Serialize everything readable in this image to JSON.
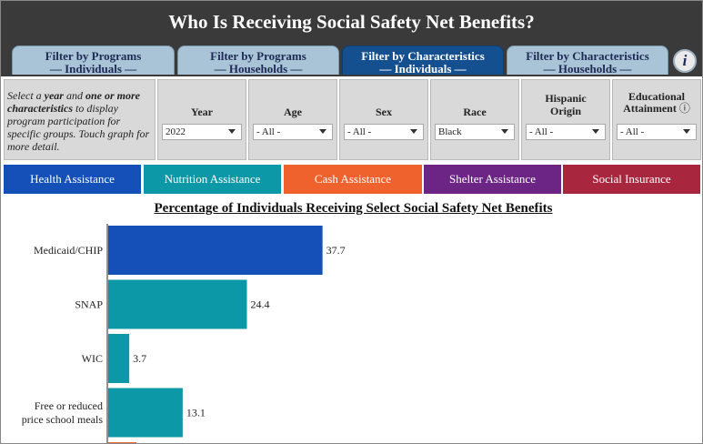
{
  "header": {
    "title": "Who Is Receiving Social Safety Net Benefits?"
  },
  "tabs": [
    {
      "line1": "Filter by Programs",
      "line2": "— Individuals —",
      "active": false
    },
    {
      "line1": "Filter by Programs",
      "line2": "— Households —",
      "active": false
    },
    {
      "line1": "Filter by Characteristics",
      "line2": "— Individuals —",
      "active": true
    },
    {
      "line1": "Filter by Characteristics",
      "line2": "— Households —",
      "active": false
    }
  ],
  "info_icon": "i",
  "filters": {
    "help": {
      "p1": "Select a ",
      "year": "year",
      "p2": " and ",
      "chars": "one or more characteristics",
      "p3": " to display program participation for specific groups. Touch graph for more detail."
    },
    "year": {
      "label": "Year",
      "value": "2022"
    },
    "age": {
      "label": "Age",
      "value": "- All -"
    },
    "sex": {
      "label": "Sex",
      "value": "- All -"
    },
    "race": {
      "label": "Race",
      "value": "Black"
    },
    "hispanic": {
      "label1": "Hispanic",
      "label2": "Origin",
      "value": "- All -"
    },
    "education": {
      "label1": "Educational",
      "label2": "Attainment",
      "info": "ⓘ",
      "value": "- All -"
    }
  },
  "categories": [
    {
      "label": "Health Assistance",
      "color": "#1450b8"
    },
    {
      "label": "Nutrition Assistance",
      "color": "#0c98a6"
    },
    {
      "label": "Cash Assistance",
      "color": "#f0622d"
    },
    {
      "label": "Shelter Assistance",
      "color": "#6c2585"
    },
    {
      "label": "Social Insurance",
      "color": "#a8263e"
    }
  ],
  "chart_data": {
    "type": "bar",
    "orientation": "horizontal",
    "title": "Percentage of Individuals Receiving Select Social Safety Net Benefits",
    "categories": [
      "Medicaid/CHIP",
      "SNAP",
      "WIC",
      "Free or reduced price school meals"
    ],
    "values": [
      37.7,
      24.4,
      3.7,
      13.1
    ],
    "value_labels": [
      "37.7",
      "24.4",
      "3.7",
      "13.1"
    ],
    "colors": [
      "#1450b8",
      "#0c98a6",
      "#0c98a6",
      "#0c98a6"
    ],
    "xlim": [
      0,
      100
    ],
    "grid": false
  }
}
